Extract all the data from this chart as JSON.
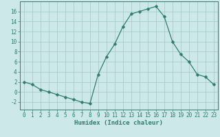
{
  "x": [
    0,
    1,
    2,
    3,
    4,
    5,
    6,
    7,
    8,
    9,
    10,
    11,
    12,
    13,
    14,
    15,
    16,
    17,
    18,
    19,
    20,
    21,
    22,
    23
  ],
  "y": [
    2,
    1.5,
    0.5,
    0,
    -0.5,
    -1,
    -1.5,
    -2,
    -2.3,
    3.5,
    7,
    9.5,
    13,
    15.5,
    16,
    16.5,
    17,
    15,
    10,
    7.5,
    6,
    3.5,
    3,
    1.5
  ],
  "line_color": "#2e7d6e",
  "marker": "D",
  "marker_size": 2.5,
  "bg_color": "#cce8e8",
  "grid_color": "#9ec8c8",
  "xlabel": "Humidex (Indice chaleur)",
  "xlim": [
    -0.5,
    23.5
  ],
  "ylim": [
    -3.5,
    18
  ],
  "yticks": [
    -2,
    0,
    2,
    4,
    6,
    8,
    10,
    12,
    14,
    16
  ],
  "xticks": [
    0,
    1,
    2,
    3,
    4,
    5,
    6,
    7,
    8,
    9,
    10,
    11,
    12,
    13,
    14,
    15,
    16,
    17,
    18,
    19,
    20,
    21,
    22,
    23
  ],
  "tick_fontsize": 5.5,
  "xlabel_fontsize": 6.5,
  "axis_color": "#2e7d6e",
  "tick_color": "#2e7d6e"
}
